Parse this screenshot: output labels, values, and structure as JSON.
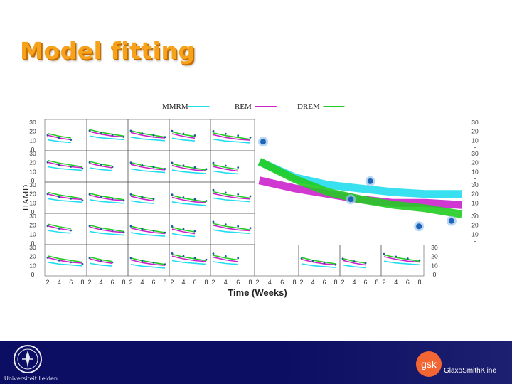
{
  "slide": {
    "title": "Model fitting"
  },
  "chart_data": {
    "type": "line",
    "title": "",
    "xlabel": "Time (Weeks)",
    "ylabel": "HAMD",
    "x_ticks": [
      2,
      4,
      6,
      8
    ],
    "y_ticks": [
      0,
      10,
      20,
      30
    ],
    "ylim": [
      0,
      30
    ],
    "legend": {
      "placement": "top",
      "entries": [
        {
          "name": "MMRM",
          "color": "#22ddee"
        },
        {
          "name": "REM",
          "color": "#cc22cc"
        },
        {
          "name": "DREM",
          "color": "#22cc22"
        }
      ]
    },
    "panel_series_example": {
      "x": [
        2,
        4,
        6,
        8
      ],
      "MMRM": [
        16,
        14,
        13,
        12
      ],
      "REM": [
        18,
        15,
        13,
        12
      ],
      "DREM": [
        20,
        17,
        15,
        13
      ]
    },
    "zoom_panel": {
      "x": [
        2,
        3,
        4,
        5,
        6,
        7,
        8
      ],
      "MMRM": [
        21,
        17,
        15,
        14,
        13,
        12.5,
        12.5
      ],
      "REM": [
        16,
        14,
        12.5,
        11,
        10,
        10,
        9.5
      ],
      "DREM": [
        21,
        16.5,
        13,
        11,
        9.5,
        8.5,
        7
      ],
      "observed": [
        {
          "x": 2,
          "y": 27
        },
        {
          "x": 4.7,
          "y": 11
        },
        {
          "x": 5.3,
          "y": 16
        },
        {
          "x": 6.8,
          "y": 3.5
        },
        {
          "x": 7.8,
          "y": 5
        }
      ]
    }
  },
  "footer": {
    "university_label": "Universiteit Leiden",
    "company_logo_text": "gsk",
    "company_name": "GlaxoSmithKline"
  }
}
